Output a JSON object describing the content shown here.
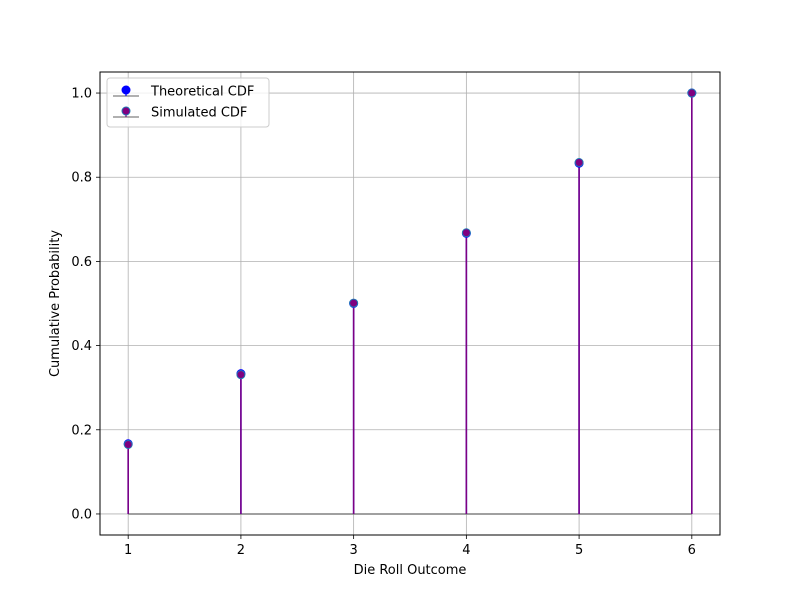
{
  "chart_data": {
    "type": "stem",
    "title": "",
    "xlabel": "Die Roll Outcome",
    "ylabel": "Cumulative Probability",
    "x": [
      1,
      2,
      3,
      4,
      5,
      6
    ],
    "xticks": [
      "1",
      "2",
      "3",
      "4",
      "5",
      "6"
    ],
    "yticks": [
      "0.0",
      "0.2",
      "0.4",
      "0.6",
      "0.8",
      "1.0"
    ],
    "ytick_values": [
      0.0,
      0.2,
      0.4,
      0.6,
      0.8,
      1.0
    ],
    "xlim": [
      0.75,
      6.25
    ],
    "ylim": [
      -0.05,
      1.05
    ],
    "grid": true,
    "legend_position": "upper-left",
    "baseline": 0,
    "series": [
      {
        "name": "Theoretical CDF",
        "values": [
          0.1667,
          0.3333,
          0.5,
          0.6667,
          0.8333,
          1.0
        ],
        "marker_color": "#0000ff",
        "stem_color": "#0000ff"
      },
      {
        "name": "Simulated CDF",
        "values": [
          0.165,
          0.331,
          0.501,
          0.668,
          0.835,
          1.0
        ],
        "marker_color": "#800080",
        "marker_edge_color": "#1f77b4",
        "stem_color": "#800080"
      }
    ],
    "baseline_color": "#808080",
    "grid_color": "#b0b0b0"
  }
}
